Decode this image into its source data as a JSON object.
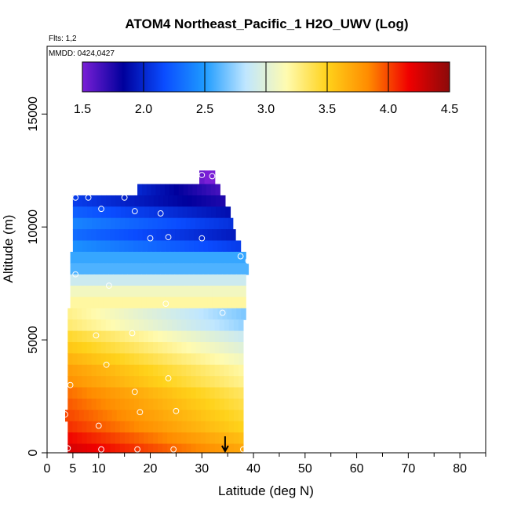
{
  "chart_data": {
    "type": "heatmap",
    "title": "ATOM4 Northeast_Pacific_1 H2O_UWV (Log)",
    "flights_label": "Flts: 1,2",
    "date_label": "MMDD: 0424,0427",
    "xlabel": "Latitude (deg N)",
    "ylabel": "Altitude (m)",
    "xlim": [
      0,
      85
    ],
    "ylim": [
      0,
      18000
    ],
    "xticks": [
      0,
      5,
      10,
      20,
      30,
      40,
      50,
      60,
      70,
      80
    ],
    "yticks": [
      0,
      5000,
      10000,
      15000
    ],
    "colorbar": {
      "range": [
        1.5,
        4.5
      ],
      "ticks": [
        1.5,
        2.0,
        2.5,
        3.0,
        3.5,
        4.0,
        4.5
      ],
      "colors": [
        "#7a1fd6",
        "#00009c",
        "#0a4cff",
        "#1e9bff",
        "#bfe6ff",
        "#fffbb0",
        "#ffd21a",
        "#ff8c00",
        "#f00000",
        "#8b0a0a"
      ]
    },
    "colorbar_tick_labels": [
      "1.5",
      "2.0",
      "2.5",
      "3.0",
      "3.5",
      "4.0",
      "4.5"
    ],
    "xtick_labels": [
      "0",
      "5",
      "10",
      "20",
      "30",
      "40",
      "50",
      "60",
      "70",
      "80"
    ],
    "ytick_labels": [
      "0",
      "5000",
      "10000",
      "15000"
    ],
    "curtain_bands": [
      {
        "alt": [
          11800,
          12500
        ],
        "lat": [
          29.5,
          32.5
        ],
        "value": 1.55
      },
      {
        "alt": [
          11400,
          11900
        ],
        "lat": [
          17.5,
          33.5
        ],
        "value": 2.0
      },
      {
        "alt": [
          10900,
          11400
        ],
        "lat": [
          5.0,
          34.5
        ],
        "value": 2.1
      },
      {
        "alt": [
          10400,
          10900
        ],
        "lat": [
          5.0,
          35.5
        ],
        "value": 2.25
      },
      {
        "alt": [
          9900,
          10400
        ],
        "lat": [
          5.0,
          36.0
        ],
        "value": 2.4
      },
      {
        "alt": [
          9400,
          9900
        ],
        "lat": [
          5.0,
          36.5
        ],
        "value": 2.3
      },
      {
        "alt": [
          8900,
          9400
        ],
        "lat": [
          5.0,
          37.5
        ],
        "value": 2.45
      },
      {
        "alt": [
          8400,
          8900
        ],
        "lat": [
          4.5,
          38.5
        ],
        "value": 2.55
      },
      {
        "alt": [
          7900,
          8400
        ],
        "lat": [
          4.5,
          39.0
        ],
        "value": 2.6
      },
      {
        "alt": [
          7400,
          7900
        ],
        "lat": [
          4.5,
          38.5
        ],
        "value": 2.9
      },
      {
        "alt": [
          6900,
          7400
        ],
        "lat": [
          4.5,
          38.5
        ],
        "value": 3.1
      },
      {
        "alt": [
          6400,
          6900
        ],
        "lat": [
          4.5,
          38.5
        ],
        "value": 3.2
      },
      {
        "alt": [
          5900,
          6400
        ],
        "lat": [
          4.0,
          38.5
        ],
        "value": 3.25
      },
      {
        "alt": [
          5400,
          5900
        ],
        "lat": [
          4.0,
          38.0
        ],
        "value": 3.3
      },
      {
        "alt": [
          4900,
          5400
        ],
        "lat": [
          4.0,
          38.0
        ],
        "value": 3.45
      },
      {
        "alt": [
          4400,
          4900
        ],
        "lat": [
          4.0,
          38.0
        ],
        "value": 3.55
      },
      {
        "alt": [
          3900,
          4400
        ],
        "lat": [
          4.0,
          38.0
        ],
        "value": 3.65
      },
      {
        "alt": [
          3400,
          3900
        ],
        "lat": [
          4.0,
          38.0
        ],
        "value": 3.75
      },
      {
        "alt": [
          2900,
          3400
        ],
        "lat": [
          4.0,
          38.0
        ],
        "value": 3.8
      },
      {
        "alt": [
          2400,
          2900
        ],
        "lat": [
          4.0,
          38.0
        ],
        "value": 3.9
      },
      {
        "alt": [
          1900,
          2400
        ],
        "lat": [
          4.0,
          38.0
        ],
        "value": 3.95
      },
      {
        "alt": [
          1400,
          1900
        ],
        "lat": [
          3.5,
          38.0
        ],
        "value": 4.0
      },
      {
        "alt": [
          900,
          1400
        ],
        "lat": [
          4.0,
          38.0
        ],
        "value": 4.05
      },
      {
        "alt": [
          400,
          900
        ],
        "lat": [
          4.0,
          38.0
        ],
        "value": 4.15
      },
      {
        "alt": [
          0,
          400
        ],
        "lat": [
          4.0,
          38.0
        ],
        "value": 4.25
      }
    ],
    "sample_points": [
      {
        "lat": 30.0,
        "alt": 12300
      },
      {
        "lat": 32.0,
        "alt": 12250
      },
      {
        "lat": 5.5,
        "alt": 11300
      },
      {
        "lat": 8.0,
        "alt": 11300
      },
      {
        "lat": 15.0,
        "alt": 11300
      },
      {
        "lat": 10.5,
        "alt": 10800
      },
      {
        "lat": 17.0,
        "alt": 10700
      },
      {
        "lat": 22.0,
        "alt": 10600
      },
      {
        "lat": 20.0,
        "alt": 9500
      },
      {
        "lat": 23.5,
        "alt": 9550
      },
      {
        "lat": 30.0,
        "alt": 9500
      },
      {
        "lat": 37.5,
        "alt": 8700
      },
      {
        "lat": 39.0,
        "alt": 8500
      },
      {
        "lat": 5.5,
        "alt": 7900
      },
      {
        "lat": 12.0,
        "alt": 7400
      },
      {
        "lat": 23.0,
        "alt": 6600
      },
      {
        "lat": 34.0,
        "alt": 6200
      },
      {
        "lat": 9.5,
        "alt": 5200
      },
      {
        "lat": 16.5,
        "alt": 5300
      },
      {
        "lat": 11.5,
        "alt": 3900
      },
      {
        "lat": 23.5,
        "alt": 3300
      },
      {
        "lat": 4.5,
        "alt": 3000
      },
      {
        "lat": 17.0,
        "alt": 2700
      },
      {
        "lat": 18.0,
        "alt": 1800
      },
      {
        "lat": 25.0,
        "alt": 1850
      },
      {
        "lat": 3.5,
        "alt": 1700
      },
      {
        "lat": 10.0,
        "alt": 1200
      },
      {
        "lat": 4.0,
        "alt": 200
      },
      {
        "lat": 10.5,
        "alt": 150
      },
      {
        "lat": 17.5,
        "alt": 150
      },
      {
        "lat": 24.5,
        "alt": 150
      },
      {
        "lat": 38.0,
        "alt": 150
      }
    ],
    "marker": {
      "lat": 34.5,
      "alt": 0,
      "symbol": "down-arrow"
    }
  }
}
